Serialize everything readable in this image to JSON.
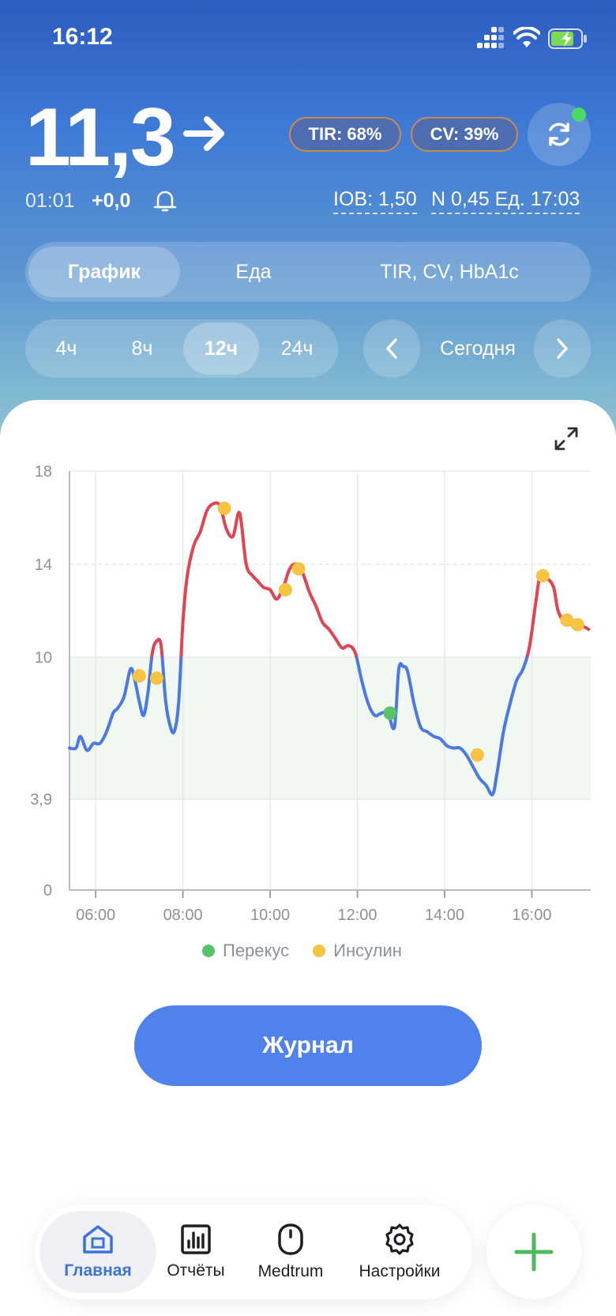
{
  "status_bar": {
    "time": "16:12"
  },
  "glucose": {
    "value": "11,3",
    "trend": "arrow-right",
    "tir": "TIR: 68%",
    "cv": "CV: 39%",
    "last_reading_time": "01:01",
    "delta": "+0,0",
    "iob": "IOB: 1,50",
    "basal": "N 0,45 Ед. 17:03"
  },
  "tabs": [
    {
      "label": "График",
      "active": true
    },
    {
      "label": "Еда",
      "active": false
    },
    {
      "label": "TIR, CV, HbA1c",
      "active": false
    }
  ],
  "ranges": [
    {
      "label": "4ч",
      "active": false
    },
    {
      "label": "8ч",
      "active": false
    },
    {
      "label": "12ч",
      "active": true
    },
    {
      "label": "24ч",
      "active": false
    }
  ],
  "day_nav": {
    "label": "Сегодня"
  },
  "chart_data": {
    "type": "line",
    "title": "",
    "xlabel": "",
    "ylabel": "",
    "xlim": [
      5.4,
      17.35
    ],
    "ylim": [
      0,
      18
    ],
    "x_ticks": [
      "06:00",
      "08:00",
      "10:00",
      "12:00",
      "14:00",
      "16:00"
    ],
    "y_ticks": [
      "0",
      "3,9",
      "10",
      "14",
      "18"
    ],
    "target_range": [
      3.9,
      10
    ],
    "high_threshold": 14,
    "line_colors": {
      "in_range": "#4a79e3",
      "high": "#e14351"
    },
    "glucose": {
      "x": [
        5.4,
        5.55,
        5.65,
        5.8,
        5.95,
        6.1,
        6.25,
        6.4,
        6.5,
        6.65,
        6.8,
        6.9,
        7.0,
        7.1,
        7.2,
        7.3,
        7.4,
        7.5,
        7.6,
        7.7,
        7.8,
        7.9,
        8.0,
        8.1,
        8.25,
        8.4,
        8.55,
        8.7,
        8.85,
        9.0,
        9.15,
        9.3,
        9.45,
        9.6,
        9.7,
        9.85,
        10.0,
        10.15,
        10.3,
        10.45,
        10.6,
        10.75,
        10.9,
        11.05,
        11.2,
        11.35,
        11.5,
        11.65,
        11.8,
        11.95,
        12.1,
        12.25,
        12.4,
        12.55,
        12.7,
        12.85,
        12.95,
        13.05,
        13.15,
        13.3,
        13.45,
        13.6,
        13.75,
        13.9,
        14.05,
        14.2,
        14.35,
        14.5,
        14.65,
        14.8,
        14.95,
        15.1,
        15.2,
        15.35,
        15.5,
        15.65,
        15.8,
        15.95,
        16.1,
        16.2,
        16.35,
        16.5,
        16.6,
        16.75,
        16.9,
        17.05,
        17.2,
        17.3
      ],
      "y": [
        6.1,
        6.1,
        6.6,
        6.0,
        6.3,
        6.3,
        6.8,
        7.6,
        7.8,
        8.3,
        9.5,
        9.0,
        8.1,
        7.5,
        8.5,
        10.2,
        10.7,
        10.5,
        8.2,
        7.1,
        6.8,
        8.0,
        11.5,
        13.5,
        14.8,
        15.4,
        16.3,
        16.6,
        16.5,
        15.5,
        15.2,
        16.2,
        14.0,
        13.5,
        13.3,
        13.0,
        12.9,
        12.5,
        13.0,
        13.8,
        14.0,
        13.6,
        12.8,
        12.2,
        11.5,
        11.2,
        10.8,
        10.4,
        10.5,
        10.2,
        9.0,
        8.0,
        7.5,
        7.6,
        7.6,
        7.0,
        9.5,
        9.6,
        9.4,
        8.0,
        7.0,
        6.8,
        6.6,
        6.5,
        6.2,
        6.1,
        6.1,
        5.8,
        5.3,
        4.8,
        4.5,
        4.1,
        5.0,
        6.8,
        8.0,
        9.0,
        9.5,
        10.5,
        12.5,
        13.6,
        13.4,
        13.0,
        12.0,
        11.5,
        11.4,
        11.3,
        11.3,
        11.2
      ]
    },
    "events": [
      {
        "type": "Инсулин",
        "x": 7.0,
        "y": 9.2
      },
      {
        "type": "Инсулин",
        "x": 7.4,
        "y": 9.1
      },
      {
        "type": "Инсулин",
        "x": 8.95,
        "y": 16.4
      },
      {
        "type": "Инсулин",
        "x": 10.35,
        "y": 12.9
      },
      {
        "type": "Инсулин",
        "x": 10.65,
        "y": 13.8
      },
      {
        "type": "Перекус",
        "x": 12.75,
        "y": 7.6
      },
      {
        "type": "Инсулин",
        "x": 14.75,
        "y": 5.8
      },
      {
        "type": "Инсулин",
        "x": 16.25,
        "y": 13.5
      },
      {
        "type": "Инсулин",
        "x": 16.8,
        "y": 11.6
      },
      {
        "type": "Инсулин",
        "x": 17.05,
        "y": 11.4
      }
    ],
    "legend": [
      {
        "name": "Перекус",
        "color": "#56c26a"
      },
      {
        "name": "Инсулин",
        "color": "#f6c343"
      }
    ]
  },
  "journal_button": "Журнал",
  "bottom_nav": [
    {
      "label": "Главная",
      "icon": "home-icon",
      "active": true
    },
    {
      "label": "Отчёты",
      "icon": "chart-icon",
      "active": false
    },
    {
      "label": "Medtrum",
      "icon": "device-icon",
      "active": false
    },
    {
      "label": "Настройки",
      "icon": "gear-icon",
      "active": false
    }
  ],
  "colors": {
    "accent": "#4f82ea",
    "fab_plus": "#4fb85f"
  }
}
